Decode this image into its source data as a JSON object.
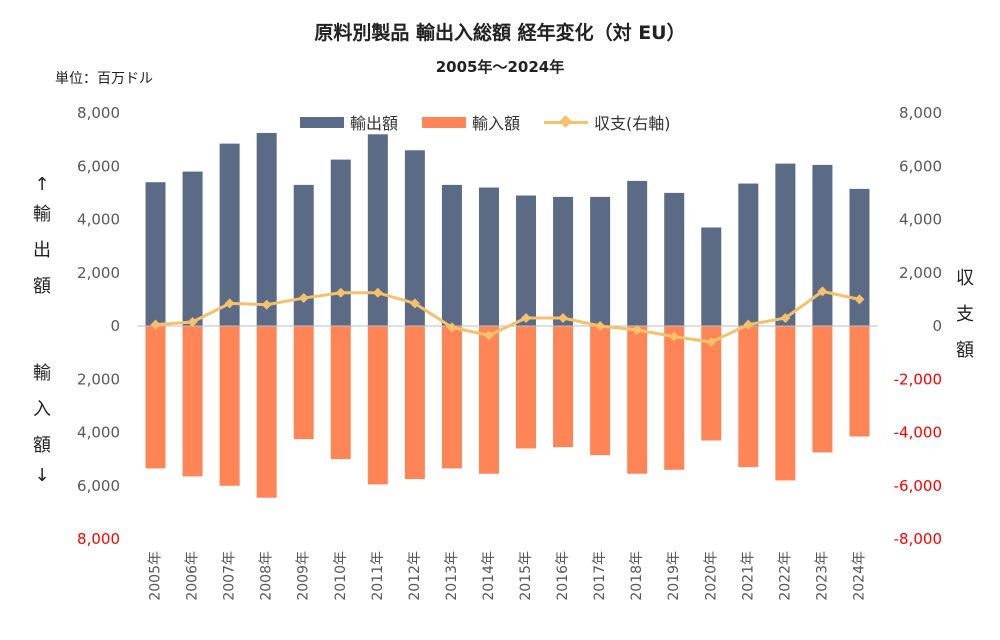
{
  "title": "原料別製品 輸出入総額 経年変化（対 EU）",
  "subtitle": "2005年～2024年",
  "unit_label": "単位：百万ドル",
  "left_axis_label_top": [
    "↑",
    "輸",
    "出",
    "額"
  ],
  "left_axis_label_bottom": [
    "輸",
    "入",
    "額",
    "↓"
  ],
  "right_axis_label": [
    "収",
    "支",
    "額"
  ],
  "colors": {
    "export": "#5B6B86",
    "import": "#FF8456",
    "balance": "#F6C16B",
    "neg_tick": "#FF0000"
  },
  "legend": {
    "export": "輸出額",
    "import": "輸入額",
    "balance": "収支(右軸)"
  },
  "chart_data": {
    "type": "bar",
    "categories": [
      "2005年",
      "2006年",
      "2007年",
      "2008年",
      "2009年",
      "2010年",
      "2011年",
      "2012年",
      "2013年",
      "2014年",
      "2015年",
      "2016年",
      "2017年",
      "2018年",
      "2019年",
      "2020年",
      "2021年",
      "2022年",
      "2023年",
      "2024年"
    ],
    "series": [
      {
        "name": "輸出額",
        "type": "bar",
        "values": [
          5400,
          5800,
          6850,
          7250,
          5300,
          6250,
          7200,
          6600,
          5300,
          5200,
          4900,
          4850,
          4850,
          5450,
          5000,
          3700,
          5350,
          6100,
          6050,
          5150
        ]
      },
      {
        "name": "輸入額",
        "type": "bar",
        "values": [
          -5350,
          -5650,
          -6000,
          -6450,
          -4250,
          -5000,
          -5950,
          -5750,
          -5350,
          -5550,
          -4600,
          -4550,
          -4850,
          -5550,
          -5400,
          -4300,
          -5300,
          -5800,
          -4750,
          -4150
        ]
      },
      {
        "name": "収支(右軸)",
        "type": "line",
        "axis": "right",
        "values": [
          50,
          150,
          850,
          800,
          1050,
          1250,
          1250,
          850,
          -50,
          -350,
          300,
          300,
          0,
          -150,
          -400,
          -600,
          50,
          300,
          1300,
          1000
        ]
      }
    ],
    "y_left": {
      "ticks": [
        "8,000",
        "6,000",
        "4,000",
        "2,000",
        "0",
        "2,000",
        "4,000",
        "6,000",
        "8,000"
      ],
      "range": [
        -8000,
        8000
      ]
    },
    "y_right": {
      "ticks": [
        "8,000",
        "6,000",
        "4,000",
        "2,000",
        "0",
        "-2,000",
        "-4,000",
        "-6,000",
        "-8,000"
      ],
      "range": [
        -8000,
        8000
      ]
    },
    "legend_position": "top",
    "grid": false
  }
}
